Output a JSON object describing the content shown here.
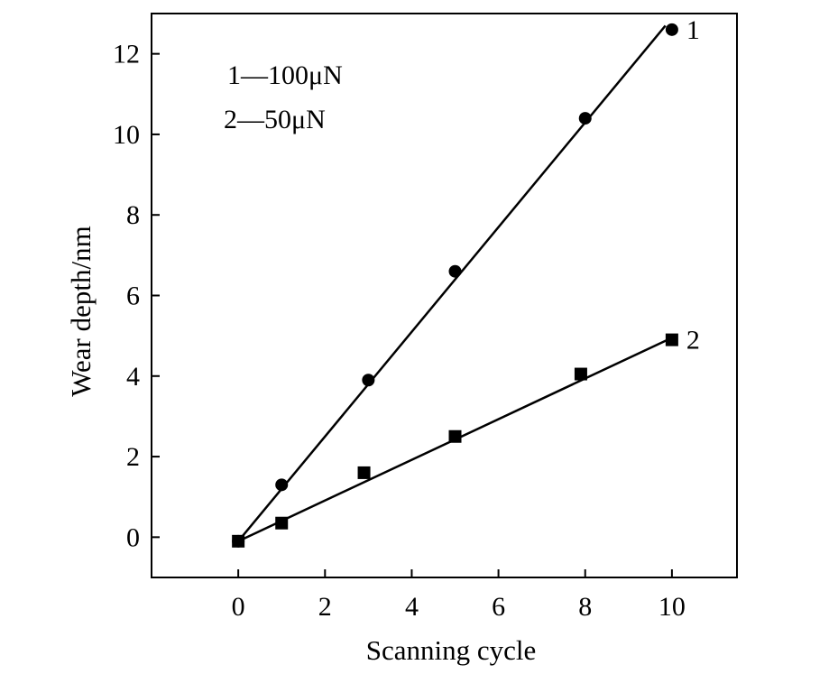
{
  "chart_data": {
    "type": "line",
    "title": "",
    "xlabel": "Scanning cycle",
    "ylabel": "Wear depth/nm",
    "xlim": [
      -2,
      11.5
    ],
    "ylim": [
      -1,
      13
    ],
    "xticks": [
      0,
      2,
      4,
      6,
      8,
      10
    ],
    "yticks": [
      0,
      2,
      4,
      6,
      8,
      10,
      12
    ],
    "xtick_labels": [
      "0",
      "2",
      "4",
      "6",
      "8",
      "10"
    ],
    "ytick_labels": [
      "0",
      "2",
      "4",
      "6",
      "8",
      "10",
      "12"
    ],
    "grid": false,
    "legend_position": "top-left",
    "legend": [
      "1—100μN",
      "2—50μN"
    ],
    "series": [
      {
        "name": "1",
        "marker": "circle",
        "x": [
          0,
          1,
          3,
          5,
          8,
          10
        ],
        "y": [
          -0.1,
          1.3,
          3.9,
          6.6,
          10.4,
          12.6
        ],
        "fit": {
          "x": [
            0,
            9.85
          ],
          "y": [
            -0.1,
            12.7
          ]
        }
      },
      {
        "name": "2",
        "marker": "square",
        "x": [
          0,
          1,
          2.9,
          5,
          7.9,
          10
        ],
        "y": [
          -0.1,
          0.35,
          1.6,
          2.5,
          4.05,
          4.9
        ],
        "fit": {
          "x": [
            0,
            10
          ],
          "y": [
            -0.1,
            4.95
          ]
        }
      }
    ],
    "colors": {
      "line": "#000000",
      "marker": "#000000"
    }
  }
}
